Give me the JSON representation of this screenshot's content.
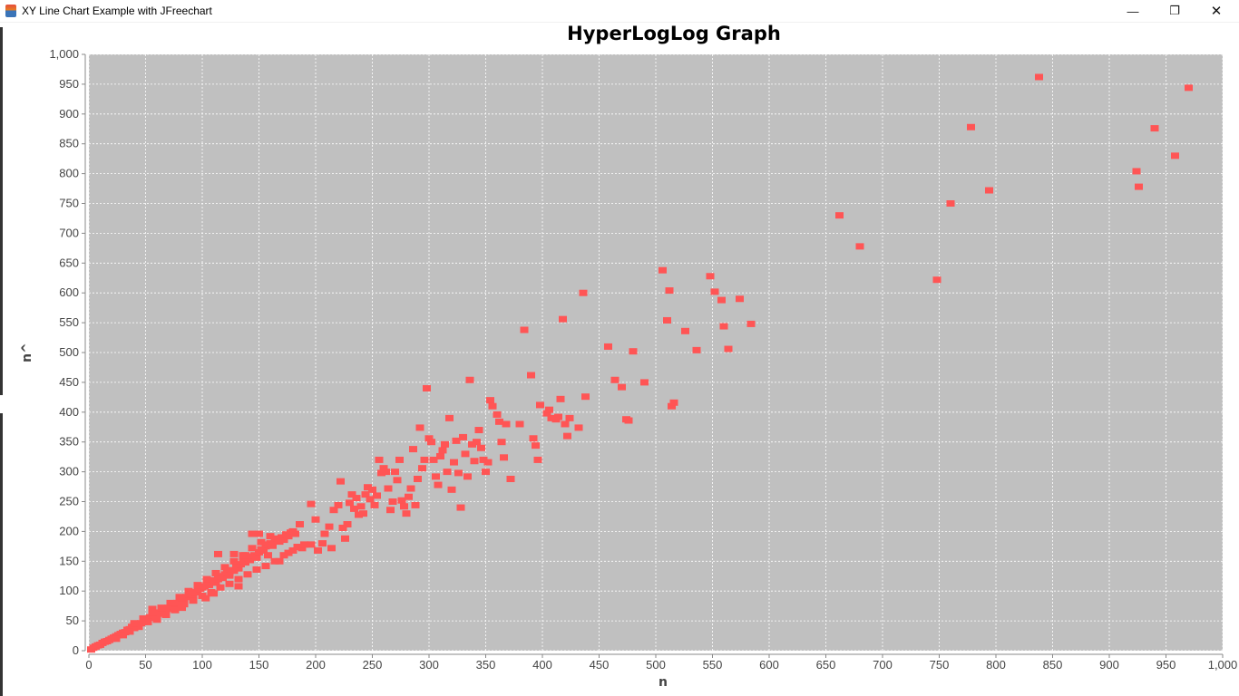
{
  "window": {
    "title": "XY Line Chart Example with JFreechart",
    "controls": {
      "minimize": "—",
      "maximize": "❐",
      "close": "✕"
    }
  },
  "chart_data": {
    "type": "scatter",
    "title": "HyperLogLog Graph",
    "xlabel": "n",
    "ylabel": "n^",
    "xlim": [
      0,
      1000
    ],
    "ylim": [
      0,
      1000
    ],
    "xticks": [
      0,
      50,
      100,
      150,
      200,
      250,
      300,
      350,
      400,
      450,
      500,
      550,
      600,
      650,
      700,
      750,
      800,
      850,
      900,
      950,
      1000
    ],
    "yticks": [
      0,
      50,
      100,
      150,
      200,
      250,
      300,
      350,
      400,
      450,
      500,
      550,
      600,
      650,
      700,
      750,
      800,
      850,
      900,
      950,
      1000
    ],
    "tick_label_format": "thousands-comma",
    "grid": true,
    "legend": "none",
    "colors": {
      "plot_background": "#c0c0c0",
      "grid": "#ffffff",
      "marker": "#ff5555",
      "axis": "#888888"
    },
    "series": [
      {
        "marker": "square",
        "points": [
          [
            2,
            2
          ],
          [
            4,
            5
          ],
          [
            6,
            7
          ],
          [
            8,
            9
          ],
          [
            10,
            10
          ],
          [
            12,
            13
          ],
          [
            14,
            15
          ],
          [
            16,
            16
          ],
          [
            18,
            18
          ],
          [
            20,
            20
          ],
          [
            22,
            22
          ],
          [
            24,
            24
          ],
          [
            26,
            26
          ],
          [
            28,
            28
          ],
          [
            30,
            30
          ],
          [
            32,
            31
          ],
          [
            34,
            35
          ],
          [
            36,
            36
          ],
          [
            38,
            40
          ],
          [
            40,
            38
          ],
          [
            42,
            42
          ],
          [
            44,
            44
          ],
          [
            46,
            46
          ],
          [
            48,
            48
          ],
          [
            50,
            50
          ],
          [
            52,
            52
          ],
          [
            54,
            56
          ],
          [
            56,
            55
          ],
          [
            58,
            60
          ],
          [
            60,
            58
          ],
          [
            62,
            64
          ],
          [
            64,
            62
          ],
          [
            66,
            68
          ],
          [
            68,
            66
          ],
          [
            70,
            72
          ],
          [
            72,
            70
          ],
          [
            74,
            75
          ],
          [
            76,
            78
          ],
          [
            78,
            80
          ],
          [
            80,
            84
          ],
          [
            82,
            88
          ],
          [
            84,
            86
          ],
          [
            86,
            90
          ],
          [
            88,
            94
          ],
          [
            90,
            96
          ],
          [
            92,
            92
          ],
          [
            94,
            98
          ],
          [
            96,
            100
          ],
          [
            98,
            104
          ],
          [
            100,
            106
          ],
          [
            102,
            108
          ],
          [
            104,
            112
          ],
          [
            106,
            110
          ],
          [
            108,
            116
          ],
          [
            110,
            118
          ],
          [
            112,
            114
          ],
          [
            114,
            120
          ],
          [
            116,
            125
          ],
          [
            118,
            122
          ],
          [
            120,
            128
          ],
          [
            122,
            130
          ],
          [
            124,
            126
          ],
          [
            126,
            135
          ],
          [
            128,
            134
          ],
          [
            130,
            140
          ],
          [
            132,
            138
          ],
          [
            134,
            145
          ],
          [
            136,
            150
          ],
          [
            138,
            148
          ],
          [
            140,
            155
          ],
          [
            142,
            152
          ],
          [
            144,
            158
          ],
          [
            146,
            160
          ],
          [
            148,
            156
          ],
          [
            150,
            165
          ],
          [
            152,
            170
          ],
          [
            154,
            168
          ],
          [
            156,
            175
          ],
          [
            158,
            178
          ],
          [
            160,
            180
          ],
          [
            162,
            176
          ],
          [
            164,
            185
          ],
          [
            166,
            188
          ],
          [
            168,
            183
          ],
          [
            170,
            190
          ],
          [
            172,
            186
          ],
          [
            174,
            195
          ],
          [
            176,
            192
          ],
          [
            178,
            198
          ],
          [
            180,
            200
          ],
          [
            182,
            196
          ],
          [
            30,
            26
          ],
          [
            36,
            32
          ],
          [
            44,
            40
          ],
          [
            52,
            48
          ],
          [
            60,
            52
          ],
          [
            68,
            60
          ],
          [
            76,
            68
          ],
          [
            84,
            78
          ],
          [
            92,
            84
          ],
          [
            100,
            92
          ],
          [
            108,
            98
          ],
          [
            116,
            106
          ],
          [
            124,
            112
          ],
          [
            132,
            120
          ],
          [
            140,
            128
          ],
          [
            148,
            136
          ],
          [
            156,
            142
          ],
          [
            164,
            150
          ],
          [
            172,
            160
          ],
          [
            180,
            168
          ],
          [
            188,
            172
          ],
          [
            196,
            178
          ],
          [
            40,
            46
          ],
          [
            48,
            54
          ],
          [
            56,
            64
          ],
          [
            64,
            72
          ],
          [
            72,
            80
          ],
          [
            80,
            90
          ],
          [
            88,
            100
          ],
          [
            96,
            110
          ],
          [
            104,
            120
          ],
          [
            112,
            130
          ],
          [
            120,
            140
          ],
          [
            128,
            150
          ],
          [
            136,
            160
          ],
          [
            144,
            172
          ],
          [
            152,
            182
          ],
          [
            160,
            192
          ],
          [
            24,
            20
          ],
          [
            56,
            70
          ],
          [
            82,
            72
          ],
          [
            103,
            88
          ],
          [
            110,
            96
          ],
          [
            114,
            162
          ],
          [
            128,
            162
          ],
          [
            132,
            108
          ],
          [
            138,
            160
          ],
          [
            144,
            196
          ],
          [
            150,
            196
          ],
          [
            158,
            160
          ],
          [
            168,
            150
          ],
          [
            176,
            164
          ],
          [
            184,
            174
          ],
          [
            190,
            178
          ],
          [
            186,
            212
          ],
          [
            196,
            246
          ],
          [
            200,
            220
          ],
          [
            202,
            168
          ],
          [
            206,
            180
          ],
          [
            208,
            196
          ],
          [
            212,
            208
          ],
          [
            214,
            172
          ],
          [
            216,
            236
          ],
          [
            220,
            244
          ],
          [
            222,
            284
          ],
          [
            224,
            206
          ],
          [
            226,
            188
          ],
          [
            228,
            212
          ],
          [
            230,
            248
          ],
          [
            232,
            262
          ],
          [
            234,
            238
          ],
          [
            236,
            256
          ],
          [
            238,
            228
          ],
          [
            240,
            242
          ],
          [
            242,
            230
          ],
          [
            244,
            262
          ],
          [
            246,
            274
          ],
          [
            248,
            254
          ],
          [
            250,
            270
          ],
          [
            252,
            244
          ],
          [
            254,
            260
          ],
          [
            256,
            320
          ],
          [
            258,
            298
          ],
          [
            260,
            306
          ],
          [
            262,
            300
          ],
          [
            264,
            272
          ],
          [
            266,
            236
          ],
          [
            268,
            250
          ],
          [
            270,
            300
          ],
          [
            272,
            286
          ],
          [
            274,
            320
          ],
          [
            276,
            252
          ],
          [
            278,
            242
          ],
          [
            280,
            230
          ],
          [
            282,
            258
          ],
          [
            284,
            272
          ],
          [
            286,
            338
          ],
          [
            288,
            244
          ],
          [
            290,
            288
          ],
          [
            292,
            374
          ],
          [
            294,
            306
          ],
          [
            296,
            320
          ],
          [
            298,
            440
          ],
          [
            300,
            356
          ],
          [
            302,
            350
          ],
          [
            304,
            320
          ],
          [
            306,
            292
          ],
          [
            308,
            278
          ],
          [
            310,
            326
          ],
          [
            312,
            336
          ],
          [
            314,
            346
          ],
          [
            316,
            300
          ],
          [
            318,
            390
          ],
          [
            320,
            270
          ],
          [
            322,
            316
          ],
          [
            324,
            352
          ],
          [
            326,
            298
          ],
          [
            328,
            240
          ],
          [
            330,
            358
          ],
          [
            332,
            330
          ],
          [
            334,
            292
          ],
          [
            336,
            454
          ],
          [
            338,
            346
          ],
          [
            340,
            318
          ],
          [
            342,
            350
          ],
          [
            344,
            370
          ],
          [
            346,
            340
          ],
          [
            348,
            320
          ],
          [
            350,
            300
          ],
          [
            352,
            316
          ],
          [
            354,
            420
          ],
          [
            356,
            410
          ],
          [
            360,
            396
          ],
          [
            362,
            384
          ],
          [
            364,
            350
          ],
          [
            366,
            324
          ],
          [
            368,
            380
          ],
          [
            372,
            288
          ],
          [
            380,
            380
          ],
          [
            384,
            538
          ],
          [
            390,
            462
          ],
          [
            392,
            356
          ],
          [
            394,
            344
          ],
          [
            396,
            320
          ],
          [
            398,
            412
          ],
          [
            404,
            398
          ],
          [
            406,
            404
          ],
          [
            408,
            390
          ],
          [
            412,
            388
          ],
          [
            414,
            392
          ],
          [
            416,
            422
          ],
          [
            418,
            556
          ],
          [
            420,
            380
          ],
          [
            422,
            360
          ],
          [
            424,
            390
          ],
          [
            432,
            374
          ],
          [
            436,
            600
          ],
          [
            438,
            426
          ],
          [
            458,
            510
          ],
          [
            464,
            454
          ],
          [
            470,
            442
          ],
          [
            474,
            388
          ],
          [
            476,
            386
          ],
          [
            480,
            502
          ],
          [
            490,
            450
          ],
          [
            506,
            638
          ],
          [
            510,
            554
          ],
          [
            512,
            604
          ],
          [
            514,
            410
          ],
          [
            516,
            416
          ],
          [
            526,
            536
          ],
          [
            536,
            504
          ],
          [
            548,
            628
          ],
          [
            552,
            602
          ],
          [
            558,
            588
          ],
          [
            560,
            544
          ],
          [
            564,
            506
          ],
          [
            574,
            590
          ],
          [
            584,
            548
          ],
          [
            662,
            730
          ],
          [
            680,
            678
          ],
          [
            748,
            622
          ],
          [
            760,
            750
          ],
          [
            778,
            878
          ],
          [
            794,
            772
          ],
          [
            838,
            962
          ],
          [
            924,
            804
          ],
          [
            926,
            778
          ],
          [
            940,
            876
          ],
          [
            958,
            830
          ],
          [
            970,
            944
          ]
        ]
      }
    ]
  }
}
